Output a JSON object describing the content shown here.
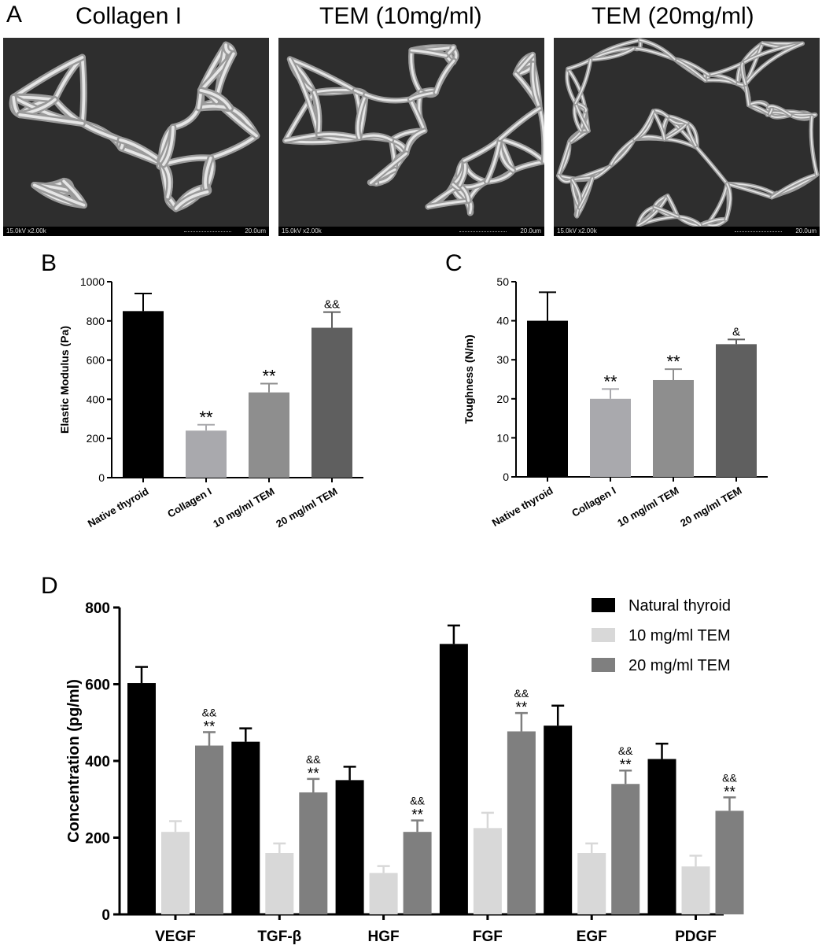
{
  "panels": {
    "a_letter": "A",
    "b_letter": "B",
    "c_letter": "C",
    "d_letter": "D"
  },
  "sem": [
    {
      "title": "Collagen I",
      "info_left": "15.0kV x2.00k",
      "info_right": "20.0um"
    },
    {
      "title": "TEM (10mg/ml)",
      "info_left": "15.0kV x2.00k",
      "info_right": "20.0um"
    },
    {
      "title": "TEM (20mg/ml)",
      "info_left": "15.0kV x2.00k",
      "info_right": "20.0um"
    }
  ],
  "colors": {
    "native": "#000000",
    "collagen": "#a9a9ad",
    "tem10": "#8e8e8e",
    "tem20": "#5f5f5f",
    "d_natural": "#000000",
    "d_tem10": "#d8d8d8",
    "d_tem20": "#7f7f7f"
  },
  "chart_data": [
    {
      "type": "bar",
      "ylabel": "Elastic Modulus (Pa)",
      "ylim": [
        0,
        1000
      ],
      "yticks": [
        0,
        200,
        400,
        600,
        800,
        1000
      ],
      "categories": [
        "Native thyroid",
        "Collagen I",
        "10 mg/ml TEM",
        "20 mg/ml TEM"
      ],
      "values": [
        850,
        240,
        435,
        765
      ],
      "errors": [
        90,
        30,
        45,
        80
      ],
      "annotations": [
        "",
        "**",
        "**",
        "&&"
      ]
    },
    {
      "type": "bar",
      "ylabel": "Toughness (N/m)",
      "ylim": [
        0,
        50
      ],
      "yticks": [
        0,
        10,
        20,
        30,
        40,
        50
      ],
      "categories": [
        "Native thyroid",
        "Collagen I",
        "10 mg/ml TEM",
        "20 mg/ml TEM"
      ],
      "values": [
        40,
        20,
        24.8,
        34
      ],
      "errors": [
        7.3,
        2.5,
        2.8,
        1.2
      ],
      "annotations": [
        "",
        "**",
        "**",
        "&"
      ]
    },
    {
      "type": "bar",
      "ylabel": "Concentration (pg/ml)",
      "ylim": [
        0,
        800
      ],
      "yticks": [
        0,
        200,
        400,
        600,
        800
      ],
      "legend_position": "top-right",
      "categories": [
        "VEGF",
        "TGF-β",
        "HGF",
        "FGF",
        "EGF",
        "PDGF"
      ],
      "series": [
        {
          "name": "Natural thyroid",
          "values": [
            603,
            450,
            350,
            705,
            492,
            405
          ],
          "errors": [
            42,
            35,
            35,
            48,
            52,
            40
          ]
        },
        {
          "name": "10 mg/ml TEM",
          "values": [
            215,
            160,
            108,
            225,
            160,
            125
          ],
          "errors": [
            28,
            25,
            18,
            40,
            25,
            28
          ]
        },
        {
          "name": "20 mg/ml TEM",
          "values": [
            440,
            318,
            215,
            477,
            340,
            270
          ],
          "errors": [
            35,
            35,
            30,
            48,
            35,
            35
          ],
          "annotations": [
            "&&\n**",
            "&&\n**",
            "&&\n**",
            "&&\n**",
            "&&\n**",
            "&&\n**"
          ]
        }
      ]
    }
  ]
}
